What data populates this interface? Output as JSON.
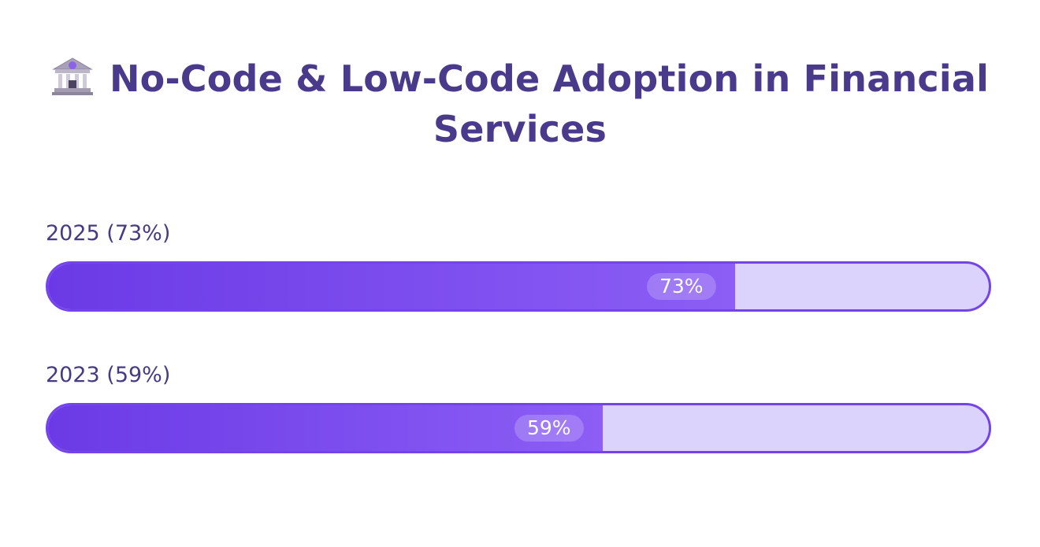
{
  "title": {
    "icon": "bank-icon",
    "text": "No-Code & Low-Code Adoption in Financial Services"
  },
  "colors": {
    "title": "#4a3a8c",
    "label": "#463a84",
    "fill_start": "#6b3ae6",
    "fill_end": "#8c5ef5",
    "track_empty": "#dcd3fc",
    "border": "#7444ea"
  },
  "chart_data": {
    "type": "bar",
    "orientation": "horizontal",
    "title": "No-Code & Low-Code Adoption in Financial Services",
    "categories": [
      "2025 (73%)",
      "2023 (59%)"
    ],
    "values": [
      73,
      59
    ],
    "value_labels": [
      "73%",
      "59%"
    ],
    "xlim": [
      0,
      100
    ],
    "grid": false,
    "legend": "none"
  }
}
